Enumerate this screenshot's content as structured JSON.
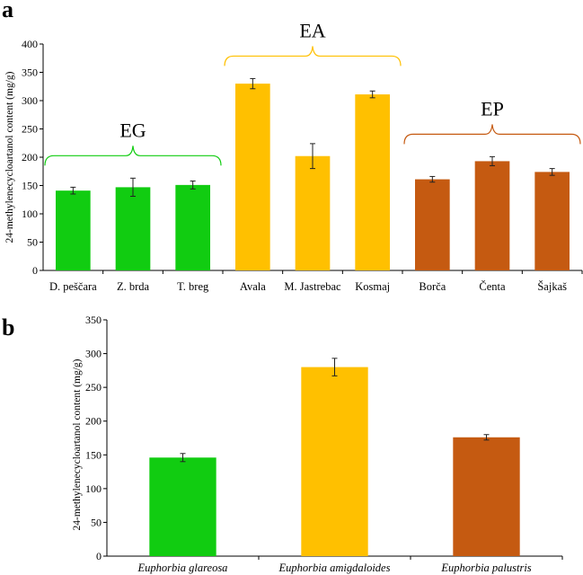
{
  "chart_data": [
    {
      "panel": "a",
      "type": "bar",
      "ylabel": "24-methylenecycloartanol content (mg/g)",
      "ylim": [
        0,
        400
      ],
      "yticks": [
        0,
        50,
        100,
        150,
        200,
        250,
        300,
        350,
        400
      ],
      "categories": [
        "D. peščara",
        "Z. brda",
        "T. breg",
        "Avala",
        "M. Jastrebac",
        "Kosmaj",
        "Borča",
        "Čenta",
        "Šajkaš"
      ],
      "values": [
        141,
        147,
        151,
        330,
        202,
        311,
        161,
        193,
        174
      ],
      "errors": [
        6,
        16,
        7,
        9,
        22,
        6,
        5,
        8,
        6
      ],
      "colors": [
        "#11cc11",
        "#11cc11",
        "#11cc11",
        "#ffc000",
        "#ffc000",
        "#ffc000",
        "#c55a11",
        "#c55a11",
        "#c55a11"
      ],
      "groups": [
        {
          "label": "EG",
          "color": "#11cc11",
          "members": [
            0,
            2
          ]
        },
        {
          "label": "EA",
          "color": "#ffc000",
          "members": [
            3,
            5
          ]
        },
        {
          "label": "EP",
          "color": "#c55a11",
          "members": [
            6,
            8
          ]
        }
      ]
    },
    {
      "panel": "b",
      "type": "bar",
      "ylabel": "24-methylenecycloartanol content (mg/g)",
      "ylim": [
        0,
        350
      ],
      "yticks": [
        0,
        50,
        100,
        150,
        200,
        250,
        300,
        350
      ],
      "categories": [
        "Euphorbia glareosa",
        "Euphorbia amigdaloides",
        "Euphorbia palustris"
      ],
      "values": [
        146,
        280,
        176
      ],
      "errors": [
        6,
        13,
        4
      ],
      "colors": [
        "#11cc11",
        "#ffc000",
        "#c55a11"
      ]
    }
  ]
}
